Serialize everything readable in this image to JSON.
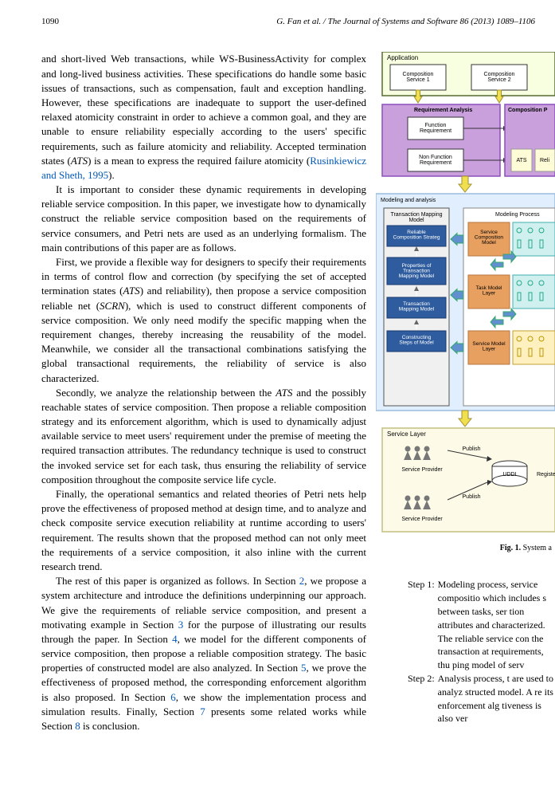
{
  "header": {
    "page_number": "1090",
    "citation": "G. Fan et al. / The Journal of Systems and Software 86 (2013) 1089–1106"
  },
  "paragraphs": {
    "p1_a": "and short-lived Web transactions, while WS-BusinessActivity for complex and long-lived business activities. These specifications do handle some basic issues of transactions, such as compensation, fault and exception handling. However, these specifications are inadequate to support the user-defined relaxed atomicity constraint in order to achieve a common goal, and they are unable to ensure reliability especially according to the users' specific requirements, such as failure atomicity and reliability. Accepted termination states (",
    "p1_ats": "ATS",
    "p1_b": ") is a mean to express the required failure atomicity (",
    "p1_link": "Rusinkiewicz and Sheth, 1995",
    "p1_c": ").",
    "p2": "It is important to consider these dynamic requirements in developing reliable service composition. In this paper, we investigate how to dynamically construct the reliable service composition based on the requirements of service consumers, and Petri nets are used as an underlying formalism. The main contributions of this paper are as follows.",
    "p3_a": "First, we provide a flexible way for designers to specify their requirements in terms of control flow and correction (by specifying the set of accepted termination states (",
    "p3_ats": "ATS",
    "p3_b": ") and reliability), then propose a service composition reliable net (",
    "p3_scrn": "SCRN",
    "p3_c": "), which is used to construct different components of service composition. We only need modify the specific mapping when the requirement changes, thereby increasing the reusability of the model. Meanwhile, we consider all the transactional combinations satisfying the global transactional requirements, the reliability of service is also characterized.",
    "p4_a": "Secondly, we analyze the relationship between the ",
    "p4_ats": "ATS",
    "p4_b": " and the possibly reachable states of service composition. Then propose a reliable composition strategy and its enforcement algorithm, which is used to dynamically adjust available service to meet users' requirement under the premise of meeting the required transaction attributes. The redundancy technique is used to construct the invoked service set for each task, thus ensuring the reliability of service composition throughout the composite service life cycle.",
    "p5": "Finally, the operational semantics and related theories of Petri nets help prove the effectiveness of proposed method at design time, and to analyze and check composite service execution reliability at runtime according to users' requirement. The results shown that the proposed method can not only meet the requirements of a service composition, it also inline with the current research trend.",
    "p6_a": "The rest of this paper is organized as follows. In Section ",
    "p6_l1": "2",
    "p6_b": ", we propose a system architecture and introduce the definitions underpinning our approach. We give the requirements of reliable service composition, and present a motivating example in Section ",
    "p6_l2": "3",
    "p6_c": " for the purpose of illustrating our results through the paper. In Section ",
    "p6_l3": "4",
    "p6_d": ", we model for the different components of service composition, then propose a reliable composition strategy. The basic properties of constructed model are also analyzed. In Section ",
    "p6_l4": "5",
    "p6_e": ", we prove the effectiveness of proposed method, the corresponding enforcement algorithm is also proposed. In Section ",
    "p6_l5": "6",
    "p6_f": ", we show the implementation process and simulation results. Finally, Section ",
    "p6_l6": "7",
    "p6_g": " presents some related works while Section ",
    "p6_l7": "8",
    "p6_h": " is conclusion."
  },
  "figure": {
    "caption_bold": "Fig. 1.",
    "caption_rest": " System a",
    "colors": {
      "app_bg": "#f8ffe0",
      "app_border": "#556b2f",
      "comp_box_bg": "#ffffff",
      "comp_box_border": "#333333",
      "req_bg": "#c9a0dc",
      "req_border": "#8a4fbd",
      "req_inner_bg": "#ffffff",
      "req_inner_border": "#333333",
      "ats_bg": "#fefcd7",
      "modeling_outer_bg": "#e0eefd",
      "modeling_outer_border": "#9bbde0",
      "trans_map_bg": "#f0f0f0",
      "trans_map_border": "#555555",
      "blue_box_bg": "#2e5c9e",
      "blue_box_border": "#1a3a6e",
      "blue_box_text": "#ffffff",
      "modeling_proc_bg": "#ffffff",
      "modeling_proc_border": "#888888",
      "orange_box_bg": "#e8a060",
      "orange_box_border": "#b87840",
      "cyan_bg": "#d0f0f0",
      "cyan_border": "#40b0b0",
      "yellow_bg": "#fff0c0",
      "yellow_border": "#c0a030",
      "service_layer_bg": "#fdfbe8",
      "service_layer_border": "#c0c080",
      "arrow": "#f0e050",
      "arrow_border": "#a09030",
      "arrow_blue": "#6090d0"
    },
    "labels": {
      "application": "Application",
      "comp_svc1": "Composition\nService 1",
      "comp_svc2": "Composition\nService 2",
      "req_analysis": "Requirement Analysis",
      "comp_proc": "Composition P",
      "func_req": "Function\nRequirement",
      "nonfunc_req": "Non Function\nRequirement",
      "ats": "ATS",
      "reli": "Reli",
      "modeling_analysis": "Modeling and analysis",
      "trans_map_model": "Transaction Mapping\nModel",
      "reliable_strategy": "Reliable\nComposition Strateg",
      "props_trans": "Properties of\nTransaction\nMapping Model",
      "trans_mapping": "Transaction\nMapping Model",
      "constructing": "Constructing\nSteps of Model",
      "modeling_process": "Modeling Process",
      "service_comp_model": "Service\nComposition\nModel",
      "task_model": "Task Model\nLayer",
      "service_model": "Service Model\nLayer",
      "service_layer": "Service Layer",
      "service_provider": "Service Provider",
      "publish": "Publish",
      "uddi": "UDDI",
      "register": "Register"
    }
  },
  "steps": {
    "s1_label": "Step 1:",
    "s1_body": "Modeling process, service compositio which includes s between tasks, ser tion attributes and characterized. The reliable service con the transaction at requirements, thu ping model of serv",
    "s2_label": "Step 2:",
    "s2_body": "Analysis process, t are used to analyz structed model. A re its enforcement alg tiveness is also ver"
  }
}
